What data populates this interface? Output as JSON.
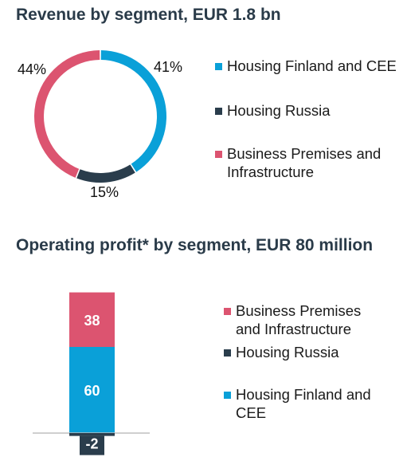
{
  "colors": {
    "blue": "#0aa0d8",
    "dark": "#2a3d4c",
    "pink": "#dc5470",
    "axis": "#bfbfbf"
  },
  "chart_data": [
    {
      "type": "pie",
      "title": "Revenue by segment, EUR 1.8 bn",
      "slices": [
        {
          "name": "Housing Finland and CEE",
          "value": 41,
          "label": "41%",
          "color": "#0aa0d8"
        },
        {
          "name": "Housing Russia",
          "value": 15,
          "label": "15%",
          "color": "#2a3d4c"
        },
        {
          "name": "Business Premises and Infrastructure",
          "value": 44,
          "label": "44%",
          "color": "#dc5470"
        }
      ],
      "legend": [
        {
          "text": "Housing Finland and CEE",
          "color": "#0aa0d8"
        },
        {
          "text": "Housing Russia",
          "color": "#2a3d4c"
        },
        {
          "text": "Business Premises and Infrastructure",
          "color": "#dc5470"
        }
      ]
    },
    {
      "type": "bar",
      "stacked": true,
      "title": "Operating profit* by segment, EUR 80 million",
      "series": [
        {
          "name": "Housing Finland and CEE",
          "value": 60,
          "label": "60",
          "color": "#0aa0d8"
        },
        {
          "name": "Business Premises and Infrastructure",
          "value": 38,
          "label": "38",
          "color": "#dc5470"
        },
        {
          "name": "Housing Russia",
          "value": -2,
          "label": "-2",
          "color": "#2a3d4c"
        }
      ],
      "legend": [
        {
          "text": "Business Premises and Infrastructure",
          "color": "#dc5470"
        },
        {
          "text": "Housing Russia",
          "color": "#2a3d4c"
        },
        {
          "text": "Housing Finland and CEE",
          "color": "#0aa0d8"
        }
      ]
    }
  ]
}
